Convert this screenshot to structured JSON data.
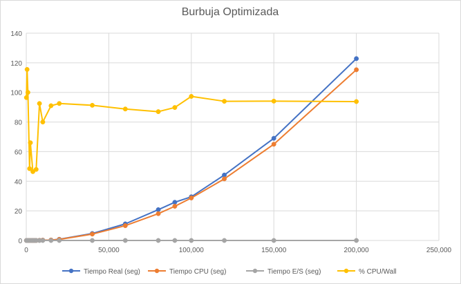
{
  "chart_data": {
    "type": "scatter",
    "title": "Burbuja Optimizada",
    "xlabel": "",
    "ylabel": "",
    "xlim": [
      0,
      250000
    ],
    "ylim": [
      0,
      140
    ],
    "x_ticks": [
      "0",
      "50,000",
      "100,000",
      "150,000",
      "200,000",
      "250,000"
    ],
    "y_ticks": [
      "0",
      "20",
      "40",
      "60",
      "80",
      "100",
      "120",
      "140"
    ],
    "x_tick_values": [
      0,
      50000,
      100000,
      150000,
      200000,
      250000
    ],
    "y_tick_values": [
      0,
      20,
      40,
      60,
      80,
      100,
      120,
      140
    ],
    "grid": true,
    "legend_position": "bottom",
    "series": [
      {
        "name": "Tiempo Real (seg)",
        "color": "#4472c4",
        "points": [
          [
            100,
            0
          ],
          [
            500,
            0
          ],
          [
            1000,
            0
          ],
          [
            2000,
            0
          ],
          [
            3000,
            0
          ],
          [
            4000,
            0
          ],
          [
            5000,
            0
          ],
          [
            6000,
            0
          ],
          [
            8000,
            0.1
          ],
          [
            10000,
            0.2
          ],
          [
            15000,
            0.3
          ],
          [
            20000,
            0.8
          ],
          [
            40000,
            4.7
          ],
          [
            60000,
            11.2
          ],
          [
            80000,
            20.8
          ],
          [
            90000,
            25.8
          ],
          [
            100000,
            29.5
          ],
          [
            120000,
            44.2
          ],
          [
            150000,
            69.0
          ],
          [
            200000,
            122.8
          ]
        ]
      },
      {
        "name": "Tiempo CPU (seg)",
        "color": "#ed7d31",
        "points": [
          [
            100,
            0
          ],
          [
            500,
            0
          ],
          [
            1000,
            0
          ],
          [
            2000,
            0
          ],
          [
            3000,
            0
          ],
          [
            4000,
            0
          ],
          [
            5000,
            0
          ],
          [
            6000,
            0
          ],
          [
            8000,
            0.1
          ],
          [
            10000,
            0.2
          ],
          [
            15000,
            0.3
          ],
          [
            20000,
            0.7
          ],
          [
            40000,
            4.3
          ],
          [
            60000,
            10.0
          ],
          [
            80000,
            18.1
          ],
          [
            90000,
            23.1
          ],
          [
            100000,
            28.7
          ],
          [
            120000,
            41.6
          ],
          [
            150000,
            65.0
          ],
          [
            200000,
            115.3
          ]
        ]
      },
      {
        "name": "Tiempo E/S (seg)",
        "color": "#a5a5a5",
        "points": [
          [
            100,
            0
          ],
          [
            500,
            0
          ],
          [
            1000,
            0
          ],
          [
            2000,
            0
          ],
          [
            3000,
            0
          ],
          [
            4000,
            0
          ],
          [
            5000,
            0
          ],
          [
            6000,
            0
          ],
          [
            8000,
            0
          ],
          [
            10000,
            0
          ],
          [
            15000,
            0
          ],
          [
            20000,
            0
          ],
          [
            40000,
            0
          ],
          [
            60000,
            0
          ],
          [
            80000,
            0
          ],
          [
            90000,
            0
          ],
          [
            100000,
            0
          ],
          [
            120000,
            0
          ],
          [
            150000,
            0
          ],
          [
            200000,
            0
          ]
        ]
      },
      {
        "name": "% CPU/Wall",
        "color": "#ffc000",
        "points": [
          [
            100,
            96.5
          ],
          [
            500,
            115.5
          ],
          [
            1000,
            100.0
          ],
          [
            2000,
            48.5
          ],
          [
            2500,
            66.0
          ],
          [
            4000,
            46.5
          ],
          [
            6000,
            48.0
          ],
          [
            8000,
            92.5
          ],
          [
            10000,
            80.0
          ],
          [
            15000,
            91.0
          ],
          [
            20000,
            92.5
          ],
          [
            40000,
            91.3
          ],
          [
            60000,
            88.8
          ],
          [
            80000,
            87.0
          ],
          [
            90000,
            89.8
          ],
          [
            100000,
            97.3
          ],
          [
            120000,
            94.0
          ],
          [
            150000,
            94.1
          ],
          [
            200000,
            93.8
          ]
        ]
      }
    ]
  }
}
